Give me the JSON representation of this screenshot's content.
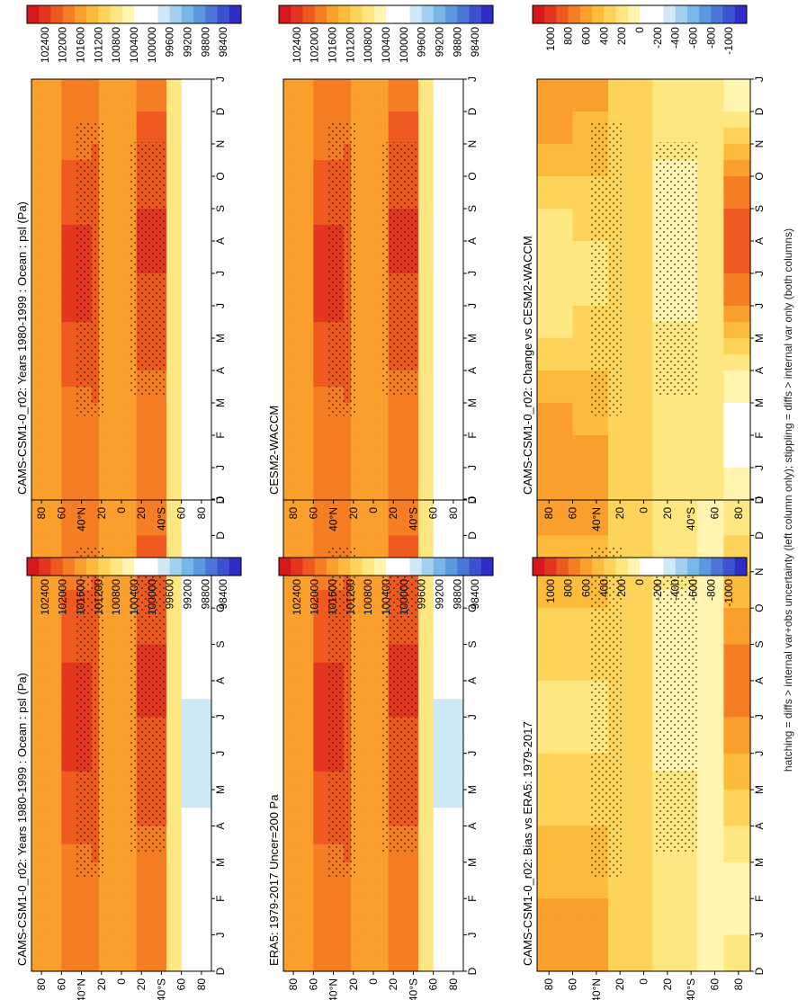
{
  "footnote": "hatching = diffs > internal var+obs uncertainty (left column only); stippling = diffs > internal var only (both columns)",
  "chart_data": [
    {
      "type": "heatmap",
      "title": "CAMS-CSM1-0_r02: Years 1980-1999 : Ocean : psl (Pa)",
      "x_label": "",
      "y_label": "",
      "x_ticks": [
        "D",
        "J",
        "F",
        "M",
        "A",
        "M",
        "J",
        "J",
        "A",
        "S",
        "O",
        "N",
        "D",
        "J"
      ],
      "y_ticks": [
        "80",
        "60",
        "40°N",
        "20",
        "0",
        "20",
        "40°S",
        "60",
        "80"
      ],
      "colorbar_ticks": [
        "102400",
        "102000",
        "101600",
        "101200",
        "100800",
        "100400",
        "100000",
        "99600",
        "99200",
        "98800",
        "98400"
      ],
      "kind": "abs",
      "hatched": true
    },
    {
      "type": "heatmap",
      "title": "CAMS-CSM1-0_r02: Years 1980-1999 : Ocean : psl (Pa)",
      "x_label": "",
      "y_label": "",
      "x_ticks": [
        "D",
        "J",
        "F",
        "M",
        "A",
        "M",
        "J",
        "J",
        "A",
        "S",
        "O",
        "N",
        "D",
        "J"
      ],
      "y_ticks": [
        "80",
        "60",
        "40°N",
        "20",
        "0",
        "20",
        "40°S",
        "60",
        "80"
      ],
      "colorbar_ticks": [
        "102400",
        "102000",
        "101600",
        "101200",
        "100800",
        "100400",
        "100000",
        "99600",
        "99200",
        "98800",
        "98400"
      ],
      "kind": "abs",
      "hatched": false
    },
    {
      "type": "heatmap",
      "title": "ERA5: 1979-2017 Uncer=200 Pa",
      "x_label": "",
      "y_label": "",
      "x_ticks": [
        "D",
        "J",
        "F",
        "M",
        "A",
        "M",
        "J",
        "J",
        "A",
        "S",
        "O",
        "N",
        "D",
        "J"
      ],
      "y_ticks": [
        "80",
        "60",
        "40°N",
        "20",
        "0",
        "20",
        "40°S",
        "60",
        "80"
      ],
      "colorbar_ticks": [
        "102400",
        "102000",
        "101600",
        "101200",
        "100800",
        "100400",
        "100000",
        "99600",
        "99200",
        "98800",
        "98400"
      ],
      "kind": "abs",
      "hatched": true
    },
    {
      "type": "heatmap",
      "title": "CESM2-WACCM",
      "x_label": "",
      "y_label": "",
      "x_ticks": [
        "D",
        "J",
        "F",
        "M",
        "A",
        "M",
        "J",
        "J",
        "A",
        "S",
        "O",
        "N",
        "D",
        "J"
      ],
      "y_ticks": [
        "80",
        "60",
        "40°N",
        "20",
        "0",
        "20",
        "40°S",
        "60",
        "80"
      ],
      "colorbar_ticks": [
        "102400",
        "102000",
        "101600",
        "101200",
        "100800",
        "100400",
        "100000",
        "99600",
        "99200",
        "98800",
        "98400"
      ],
      "kind": "abs",
      "hatched": false
    },
    {
      "type": "heatmap",
      "title": "CAMS-CSM1-0_r02: Bias vs ERA5: 1979-2017",
      "x_label": "",
      "y_label": "",
      "x_ticks": [
        "D",
        "J",
        "F",
        "M",
        "A",
        "M",
        "J",
        "J",
        "A",
        "S",
        "O",
        "N",
        "D",
        "J"
      ],
      "y_ticks": [
        "80",
        "60",
        "40°N",
        "20",
        "0",
        "20",
        "40°S",
        "60",
        "80"
      ],
      "colorbar_ticks": [
        "1000",
        "800",
        "600",
        "400",
        "200",
        "0",
        "-200",
        "-400",
        "-600",
        "-800",
        "-1000"
      ],
      "kind": "diff",
      "hatched": true
    },
    {
      "type": "heatmap",
      "title": "CAMS-CSM1-0_r02: Change vs CESM2-WACCM",
      "x_label": "",
      "y_label": "",
      "x_ticks": [
        "D",
        "J",
        "F",
        "M",
        "A",
        "M",
        "J",
        "J",
        "A",
        "S",
        "O",
        "N",
        "D",
        "J"
      ],
      "y_ticks": [
        "80",
        "60",
        "40°N",
        "20",
        "0",
        "20",
        "40°S",
        "60",
        "80"
      ],
      "colorbar_ticks": [
        "1000",
        "800",
        "600",
        "400",
        "200",
        "0",
        "-200",
        "-400",
        "-600",
        "-800",
        "-1000"
      ],
      "kind": "diff",
      "hatched": false
    }
  ],
  "palette": [
    "#d7191c",
    "#e4361f",
    "#ee5a20",
    "#f57e24",
    "#fa9e2c",
    "#fdbb3b",
    "#fed35a",
    "#fee680",
    "#fff4b0",
    "#ffffff",
    "#ffffff",
    "#cfe8f7",
    "#a3d0ef",
    "#78b6e8",
    "#5a98df",
    "#4a76d8",
    "#3c52d0",
    "#2f2cc8"
  ]
}
